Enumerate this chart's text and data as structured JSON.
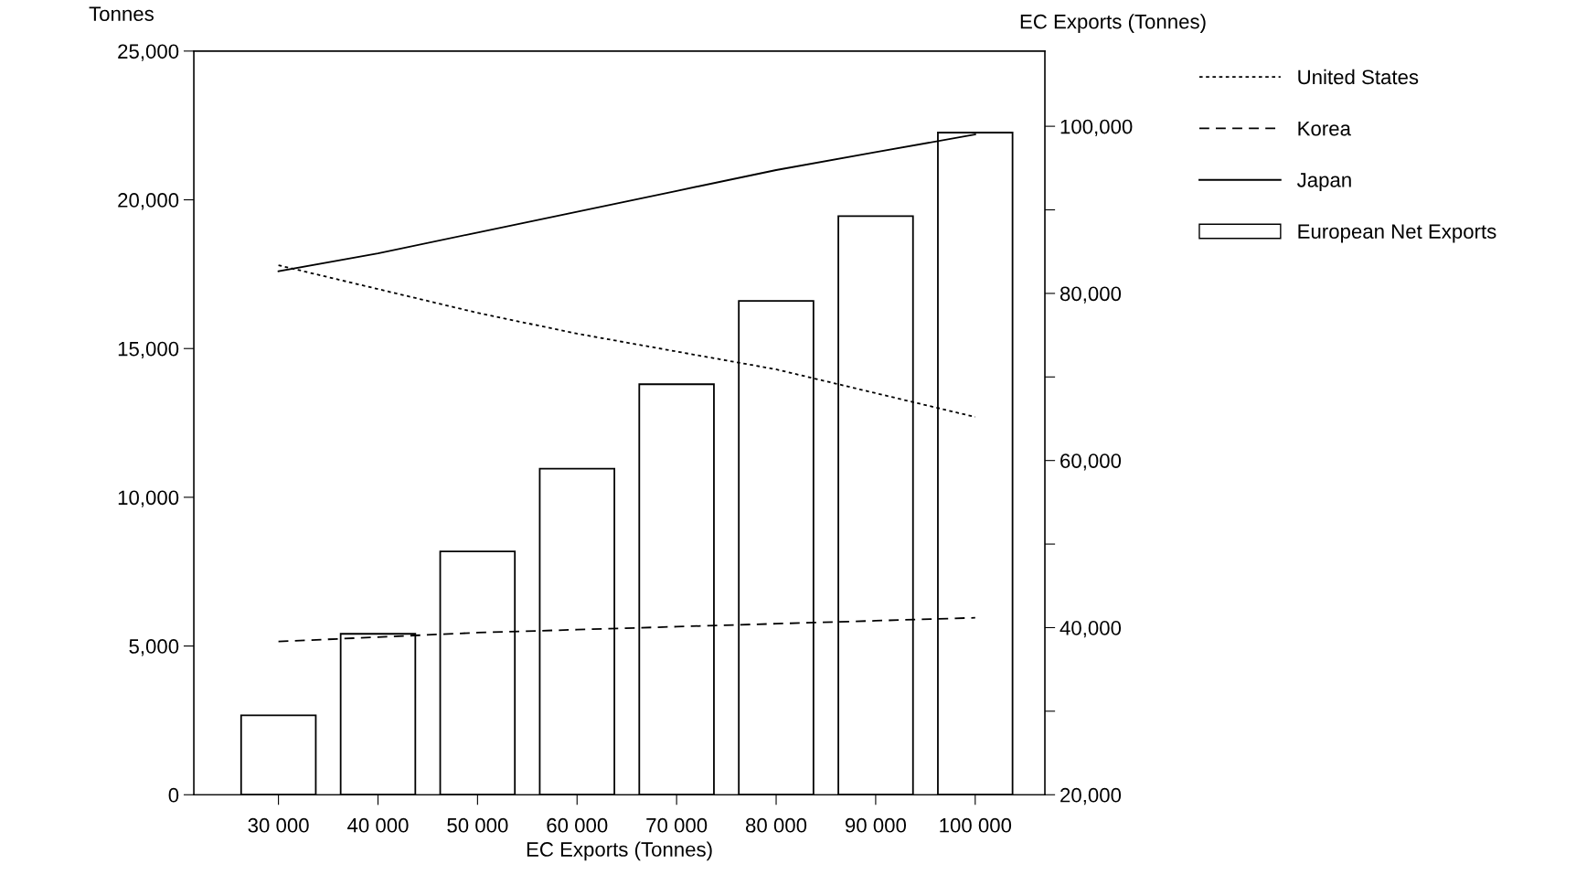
{
  "chart_data": {
    "type": "bar",
    "xlabel": "EC Exports (Tonnes)",
    "ylabel": "Tonnes",
    "y2label": "EC Exports (Tonnes)",
    "categories": [
      "30 000",
      "40 000",
      "50 000",
      "60 000",
      "70 000",
      "80 000",
      "90 000",
      "100 000"
    ],
    "series": [
      {
        "name": "United States",
        "type": "line",
        "color": "#000000",
        "line_style": "dotted",
        "values": [
          17800,
          17000,
          16200,
          15500,
          14900,
          14300,
          13500,
          12700
        ]
      },
      {
        "name": "Korea",
        "type": "line",
        "color": "#000000",
        "line_style": "dashed",
        "values": [
          5150,
          5300,
          5450,
          5550,
          5650,
          5750,
          5850,
          5950
        ]
      },
      {
        "name": "Japan",
        "type": "line",
        "color": "#000000",
        "line_style": "solid",
        "values": [
          17600,
          18200,
          18900,
          19600,
          20300,
          21000,
          21600,
          22200
        ]
      },
      {
        "name": "European Net Exports",
        "color": "#ffffff",
        "values": [
          2670,
          5410,
          8180,
          10960,
          13800,
          16600,
          19450,
          22260
        ]
      }
    ],
    "ylim": [
      0,
      25000
    ],
    "yticks": [
      0,
      {
        "value": 5000,
        "label": "5,000"
      },
      {
        "value": 10000,
        "label": "10,000"
      },
      {
        "value": 15000,
        "label": "15,000"
      },
      {
        "value": 20000,
        "label": "20,000"
      },
      {
        "value": 25000,
        "label": "25,000"
      }
    ],
    "y2lim": [
      20000,
      109000
    ],
    "y2ticks": [
      {
        "value": 20000,
        "label": "20,000"
      },
      {
        "value": 30000,
        "label": null
      },
      {
        "value": 40000,
        "label": "40,000"
      },
      {
        "value": 50000,
        "label": null
      },
      {
        "value": 60000,
        "label": "60,000"
      },
      {
        "value": 70000,
        "label": null
      },
      {
        "value": 80000,
        "label": "80,000"
      },
      {
        "value": 90000,
        "label": null
      },
      {
        "value": 100000,
        "label": "100,000"
      }
    ],
    "legend": "right",
    "grid": false,
    "marker": "none"
  }
}
